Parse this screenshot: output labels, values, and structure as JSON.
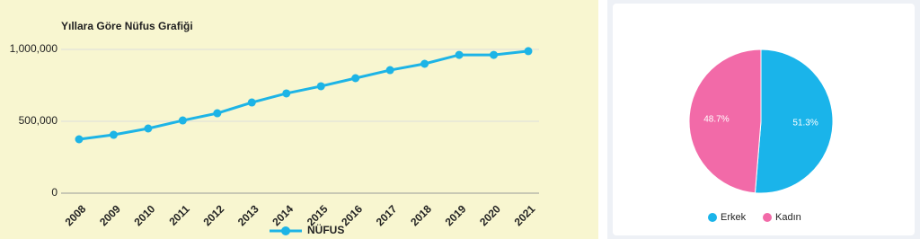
{
  "chart_data": [
    {
      "type": "line",
      "title": "Yıllara Göre Nüfus Grafiği",
      "categories": [
        "2008",
        "2009",
        "2010",
        "2011",
        "2012",
        "2013",
        "2014",
        "2015",
        "2016",
        "2017",
        "2018",
        "2019",
        "2020",
        "2021"
      ],
      "series": [
        {
          "name": "NÜFUS",
          "color": "#1db4e6",
          "values": [
            375000,
            406000,
            450000,
            506000,
            556000,
            631000,
            694000,
            744000,
            800000,
            856000,
            900000,
            962000,
            962000,
            988000
          ]
        }
      ],
      "ylim": [
        0,
        1100000
      ],
      "yticks": [
        0,
        {
          "value": 500000,
          "label": "500,000"
        },
        {
          "value": 1000000,
          "label": "1,000,000"
        }
      ],
      "grid": true,
      "legend": "bottom"
    },
    {
      "type": "pie",
      "categories": [
        "Erkek",
        "Kadın"
      ],
      "values": [
        51.3,
        48.7
      ],
      "value_labels": [
        "51.3%",
        "48.7%"
      ],
      "colors": [
        "#1ab4ea",
        "#f26aa8"
      ],
      "legend": "bottom"
    }
  ]
}
